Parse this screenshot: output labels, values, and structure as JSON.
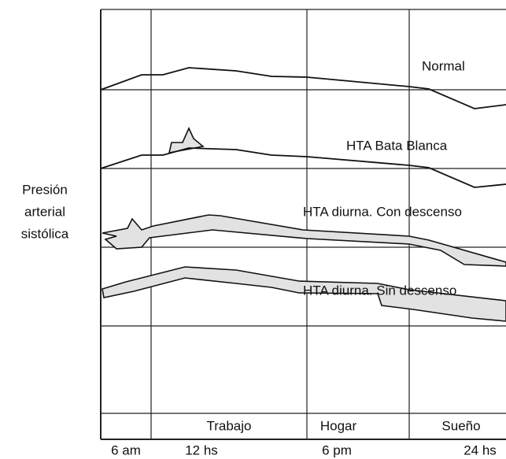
{
  "y_axis_label": [
    "Presión",
    "arterial",
    "sistólica"
  ],
  "curves": [
    {
      "label": "Normal"
    },
    {
      "label": "HTA Bata Blanca"
    },
    {
      "label": "HTA diurna. Con descenso"
    },
    {
      "label": "HTA diurna. Sin descenso"
    }
  ],
  "periods": [
    "Trabajo",
    "Hogar",
    "Sueño"
  ],
  "times": [
    "6 am",
    "12 hs",
    "6 pm",
    "24 hs"
  ]
}
